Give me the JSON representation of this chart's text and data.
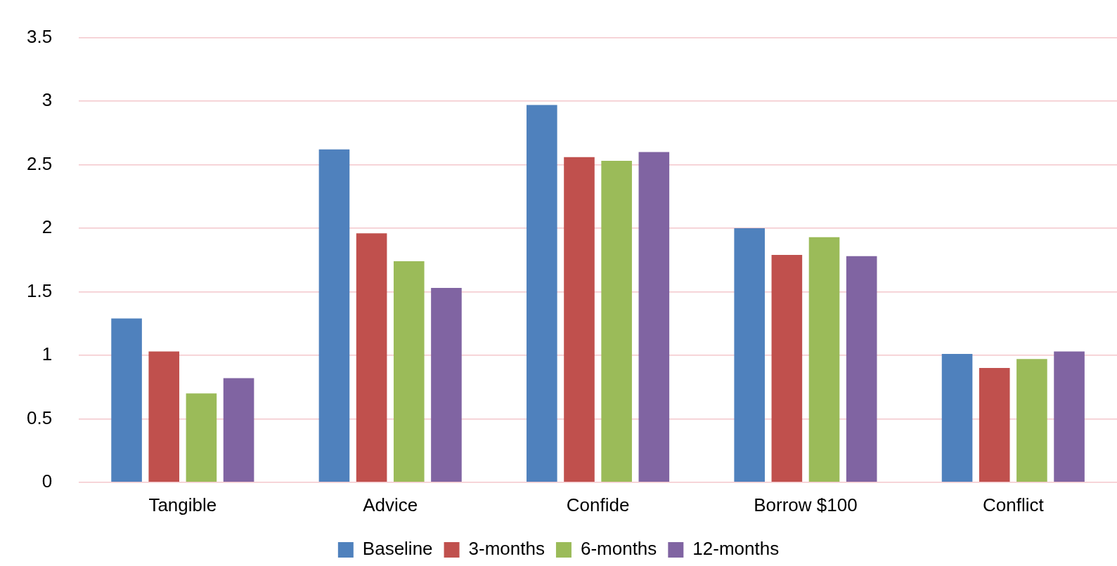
{
  "chart_data": {
    "type": "bar",
    "categories": [
      "Tangible",
      "Advice",
      "Confide",
      "Borrow $100",
      "Conflict"
    ],
    "series": [
      {
        "name": "Baseline",
        "color": "#4f81bd",
        "values": [
          1.29,
          2.62,
          2.97,
          2.0,
          1.01
        ]
      },
      {
        "name": "3-months",
        "color": "#c0504d",
        "values": [
          1.03,
          1.96,
          2.56,
          1.79,
          0.9
        ]
      },
      {
        "name": "6-months",
        "color": "#9bbb59",
        "values": [
          0.7,
          1.74,
          2.53,
          1.93,
          0.97
        ]
      },
      {
        "name": "12-months",
        "color": "#8064a2",
        "values": [
          0.82,
          1.53,
          2.6,
          1.78,
          1.03
        ]
      }
    ],
    "ylim": [
      0,
      3.5
    ],
    "yticks": [
      0,
      0.5,
      1,
      1.5,
      2,
      2.5,
      3,
      3.5
    ],
    "grid": "y",
    "legend": "bottom"
  }
}
